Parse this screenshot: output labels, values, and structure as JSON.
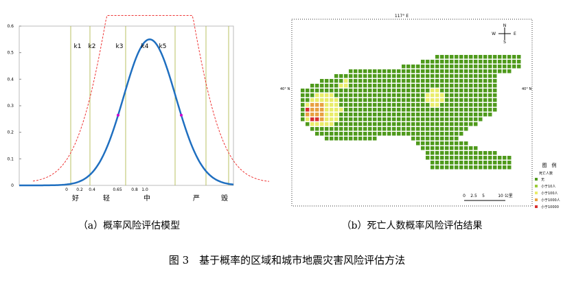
{
  "panel_a": {
    "yticks": [
      0,
      0.1,
      0.2,
      0.3,
      0.4,
      0.5,
      0.6
    ],
    "x_labels": [
      "0",
      "0.2",
      "0.4",
      "0.65",
      "0.8",
      "1.0"
    ],
    "k_labels": [
      "k1",
      "k2",
      "k3",
      "k4",
      "k5"
    ],
    "levels": [
      "好",
      "轻",
      "中",
      "严",
      "毁"
    ]
  },
  "panel_b": {
    "top_label": "117° E",
    "left_label": "40° N",
    "right_label": "40° N",
    "compass": [
      "N",
      "S",
      "W",
      "E"
    ],
    "legend_title": "图　例",
    "legend_subtitle": "死亡人数",
    "legend_items": [
      "无",
      "小于10人",
      "小于100人",
      "小于1000人",
      "小于10000"
    ],
    "scale": [
      "0",
      "2.5",
      "5",
      "10 公里"
    ]
  },
  "captions": [
    "（a）概率风险评估模型",
    "（b）死亡人数概率风险评估结果"
  ],
  "figure_caption": "图 3　基于概率的区域和城市地震灾害风险评估方法"
}
